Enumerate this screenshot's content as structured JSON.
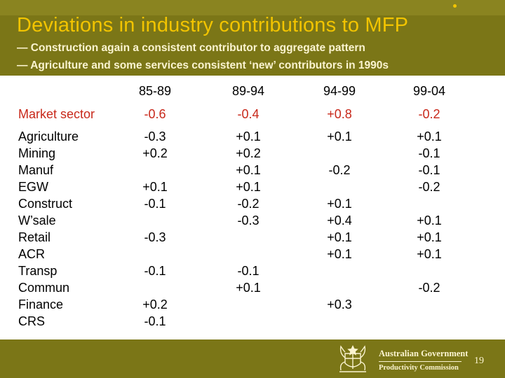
{
  "title": "Deviations in industry contributions to MFP",
  "subtitles": [
    "— Construction again a consistent contributor to aggregate pattern",
    "— Agriculture and some services consistent ‘new’ contributors in 1990s"
  ],
  "table": {
    "columns": [
      "85-89",
      "89-94",
      "94-99",
      "99-04"
    ],
    "market_sector": {
      "label": "Market sector",
      "values": [
        "-0.6",
        "-0.4",
        "+0.8",
        "-0.2"
      ]
    },
    "rows": [
      {
        "label": "Agriculture",
        "values": [
          "-0.3",
          "+0.1",
          "+0.1",
          "+0.1"
        ]
      },
      {
        "label": "Mining",
        "values": [
          "+0.2",
          "+0.2",
          "",
          "-0.1"
        ]
      },
      {
        "label": "Manuf",
        "values": [
          "",
          "+0.1",
          "-0.2",
          "-0.1"
        ]
      },
      {
        "label": "EGW",
        "values": [
          "+0.1",
          "+0.1",
          "",
          "-0.2"
        ]
      },
      {
        "label": "Construct",
        "values": [
          "-0.1",
          "-0.2",
          "+0.1",
          ""
        ]
      },
      {
        "label": "W’sale",
        "values": [
          "",
          "-0.3",
          "+0.4",
          "+0.1"
        ]
      },
      {
        "label": "Retail",
        "values": [
          "-0.3",
          "",
          "+0.1",
          "+0.1"
        ]
      },
      {
        "label": "ACR",
        "values": [
          "",
          "",
          "+0.1",
          "+0.1"
        ]
      },
      {
        "label": "Transp",
        "values": [
          "-0.1",
          "-0.1",
          "",
          ""
        ]
      },
      {
        "label": "Commun",
        "values": [
          "",
          "+0.1",
          "",
          "-0.2"
        ]
      },
      {
        "label": "Finance",
        "values": [
          "+0.2",
          "",
          "+0.3",
          ""
        ]
      },
      {
        "label": "CRS",
        "values": [
          "-0.1",
          "",
          "",
          ""
        ]
      }
    ]
  },
  "footer": {
    "logo_icon": "coat-of-arms-icon",
    "logo_line1": "Australian Government",
    "logo_line2": "Productivity Commission",
    "page_number": "19"
  },
  "colors": {
    "band": "#7b7617",
    "title": "#f2c400",
    "subtitle": "#fbf4d0",
    "market_sector": "#c8281a"
  }
}
